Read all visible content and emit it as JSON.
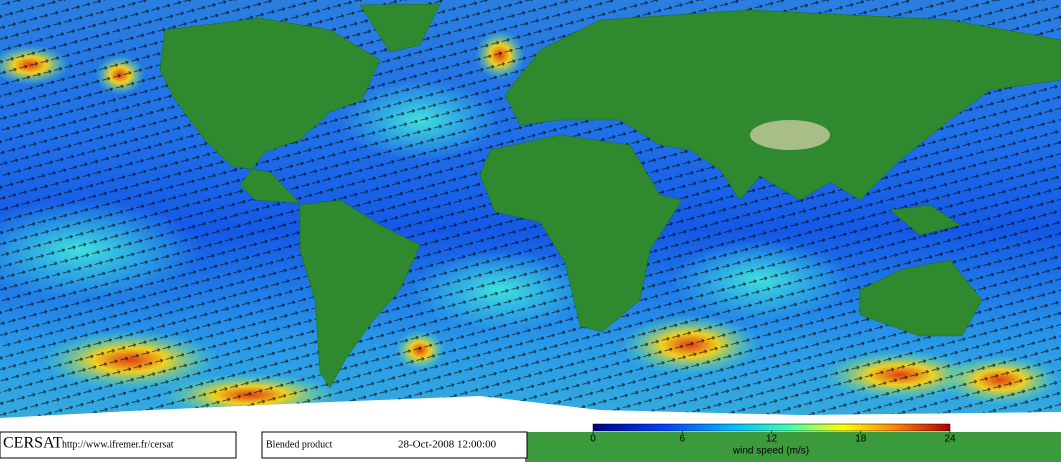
{
  "footer": {
    "logo": "CERSAT",
    "url": "http://www.ifremer.fr/cersat",
    "product": "Blended product",
    "date": "28-Oct-2008 12:00:00"
  },
  "colorbar": {
    "label": "wind speed (m/s)",
    "lim": [
      0,
      24
    ],
    "ticks": [
      0,
      6,
      12,
      18,
      24
    ]
  }
}
